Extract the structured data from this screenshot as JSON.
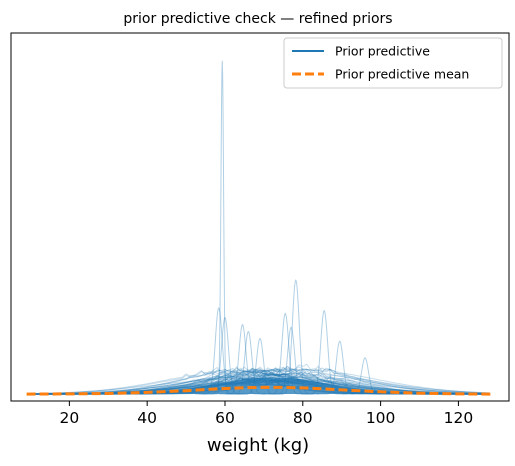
{
  "chart_data": {
    "type": "line",
    "title": "prior predictive check — refined priors",
    "xlabel": "weight (kg)",
    "ylabel": "",
    "xlim": [
      5,
      133
    ],
    "ylim": [
      -0.005,
      0.26
    ],
    "xticks": [
      20,
      40,
      60,
      80,
      100,
      120
    ],
    "xtick_labels": [
      "20",
      "40",
      "60",
      "80",
      "100",
      "120"
    ],
    "y_ticks_shown": false,
    "grid": false,
    "legend": {
      "placement": "top-right",
      "entries": [
        {
          "label": "Prior predictive",
          "color": "#1f77b4",
          "style": "solid"
        },
        {
          "label": "Prior predictive mean",
          "color": "#ff7f0e",
          "style": "dashed"
        }
      ]
    },
    "series": [
      {
        "name": "Prior predictive mean",
        "color": "#ff7f0e",
        "style": "dashed",
        "x": [
          9,
          20,
          30,
          40,
          50,
          55,
          60,
          65,
          70,
          75,
          80,
          85,
          90,
          100,
          110,
          120,
          129
        ],
        "y": [
          0.0,
          0.0001,
          0.0004,
          0.0012,
          0.0024,
          0.0032,
          0.004,
          0.0046,
          0.0049,
          0.0048,
          0.0044,
          0.0038,
          0.003,
          0.0016,
          0.0006,
          0.0001,
          0.0
        ]
      },
      {
        "name": "Prior predictive",
        "color": "#1f77b4",
        "style": "solid",
        "alpha": 0.25,
        "description_draws": "many kernel-density draws; dense cluster 40–110 kg, peak heights mostly < 0.04 with isolated sharp spikes",
        "spikes": [
          {
            "x": 59.3,
            "y": 0.24
          },
          {
            "x": 58.4,
            "y": 0.062
          },
          {
            "x": 60.0,
            "y": 0.055
          },
          {
            "x": 64.5,
            "y": 0.05
          },
          {
            "x": 66.0,
            "y": 0.045
          },
          {
            "x": 69.0,
            "y": 0.04
          },
          {
            "x": 75.5,
            "y": 0.058
          },
          {
            "x": 78.2,
            "y": 0.082
          },
          {
            "x": 77.0,
            "y": 0.048
          },
          {
            "x": 85.5,
            "y": 0.06
          },
          {
            "x": 89.5,
            "y": 0.038
          },
          {
            "x": 96.0,
            "y": 0.026
          }
        ],
        "broad_draws": 60
      }
    ]
  }
}
